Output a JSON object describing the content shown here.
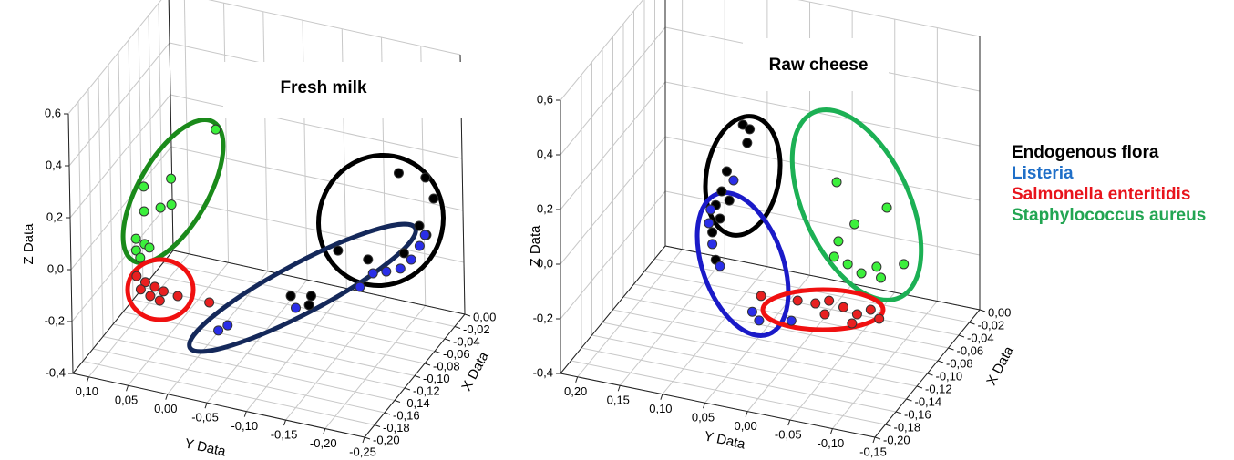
{
  "chart_data": [
    {
      "type": "scatter3d",
      "title": "Fresh milk",
      "x_label": "X Data",
      "y_label": "Y Data",
      "z_label": "Z Data",
      "xlim": [
        -0.2,
        0
      ],
      "ylim": [
        -0.25,
        0.12
      ],
      "zlim": [
        -0.4,
        0.6
      ],
      "xticks": [
        {
          "value": 0,
          "label": "0,00"
        },
        {
          "value": -0.02,
          "label": "-0,02"
        },
        {
          "value": -0.04,
          "label": "-0,04"
        },
        {
          "value": -0.06,
          "label": "-0,06"
        },
        {
          "value": -0.08,
          "label": "-0,08"
        },
        {
          "value": -0.1,
          "label": "-0,10"
        },
        {
          "value": -0.12,
          "label": "-0,12"
        },
        {
          "value": -0.14,
          "label": "-0,14"
        },
        {
          "value": -0.16,
          "label": "-0,16"
        },
        {
          "value": -0.18,
          "label": "-0,18"
        },
        {
          "value": -0.2,
          "label": "-0,20"
        }
      ],
      "yticks": [
        {
          "value": 0.1,
          "label": "0,10"
        },
        {
          "value": 0.05,
          "label": "0,05"
        },
        {
          "value": 0,
          "label": "0,00"
        },
        {
          "value": -0.05,
          "label": "-0,05"
        },
        {
          "value": -0.1,
          "label": "-0,10"
        },
        {
          "value": -0.15,
          "label": "-0,15"
        },
        {
          "value": -0.2,
          "label": "-0,20"
        },
        {
          "value": -0.25,
          "label": "-0,25"
        }
      ],
      "zticks": [
        {
          "value": 0.6,
          "label": "0,6"
        },
        {
          "value": 0.4,
          "label": "0,4"
        },
        {
          "value": 0.2,
          "label": "0,2"
        },
        {
          "value": 0,
          "label": "0,0"
        },
        {
          "value": -0.2,
          "label": "-0,2"
        },
        {
          "value": -0.4,
          "label": "-0,4"
        }
      ],
      "grid": true,
      "series": [
        {
          "name": "Endogenous flora",
          "label_color": "#000000",
          "color": "#000000",
          "x": [
            -0.02,
            -0.02,
            -0.02,
            -0.02,
            -0.02,
            -0.02,
            -0.02,
            -0.02,
            -0.08,
            -0.08,
            -0.08
          ],
          "y": [
            -0.182,
            -0.216,
            -0.226,
            -0.207,
            -0.216,
            -0.103,
            -0.141,
            -0.187,
            -0.081,
            -0.107,
            -0.104
          ],
          "z": [
            0.146,
            0.151,
            0.077,
            -0.041,
            -0.07,
            -0.205,
            -0.214,
            -0.159,
            -0.252,
            -0.235,
            -0.272
          ]
        },
        {
          "name": "Listeria",
          "label_color": "#1f6fc8",
          "color": "#2a2ee8",
          "x": [
            -0.02,
            -0.02,
            -0.02,
            -0.02,
            -0.02,
            -0.02,
            -0.02,
            -0.12,
            -0.12,
            -0.08
          ],
          "y": [
            -0.147,
            -0.164,
            -0.182,
            -0.196,
            -0.207,
            -0.214,
            -0.13,
            -0.026,
            -0.014,
            -0.087
          ],
          "z": [
            -0.263,
            -0.245,
            -0.222,
            -0.178,
            -0.118,
            -0.071,
            -0.327,
            -0.307,
            -0.335,
            -0.294
          ]
        },
        {
          "name": "Salmonella enteritidis",
          "label_color": "#e8141c",
          "color": "#e82020",
          "x": [
            -0.08,
            -0.08,
            -0.08,
            -0.08,
            -0.08,
            -0.08,
            -0.08,
            -0.08,
            -0.08
          ],
          "y": [
            0.115,
            0.104,
            0.092,
            0.081,
            0.063,
            0.098,
            0.086,
            0.023,
            0.11
          ],
          "z": [
            -0.306,
            -0.322,
            -0.332,
            -0.342,
            -0.348,
            -0.371,
            -0.381,
            -0.346,
            -0.354
          ]
        },
        {
          "name": "Staphylococcus aureus",
          "label_color": "#22a552",
          "color": "#3cf03c",
          "x": [
            -0.08,
            -0.08,
            -0.08,
            -0.08,
            -0.08,
            -0.08,
            -0.08,
            -0.08,
            -0.08,
            -0.08,
            -0.08
          ],
          "y": [
            0.011,
            0.069,
            0.104,
            0.069,
            0.083,
            0.104,
            0.115,
            0.104,
            0.115,
            0.098,
            0.11
          ],
          "z": [
            0.328,
            0.1,
            0.046,
            0,
            -0.021,
            -0.049,
            -0.162,
            -0.175,
            -0.207,
            -0.185,
            -0.232
          ]
        }
      ]
    },
    {
      "type": "scatter3d",
      "title": "Raw cheese",
      "x_label": "X Data",
      "y_label": "Y Data",
      "z_label": "Z Data",
      "xlim": [
        -0.2,
        0
      ],
      "ylim": [
        -0.15,
        0.22
      ],
      "zlim": [
        -0.4,
        0.6
      ],
      "xticks": [
        {
          "value": 0,
          "label": "0,00"
        },
        {
          "value": -0.02,
          "label": "-0,02"
        },
        {
          "value": -0.04,
          "label": "-0,04"
        },
        {
          "value": -0.06,
          "label": "-0,06"
        },
        {
          "value": -0.08,
          "label": "-0,08"
        },
        {
          "value": -0.1,
          "label": "-0,10"
        },
        {
          "value": -0.12,
          "label": "-0,12"
        },
        {
          "value": -0.14,
          "label": "-0,14"
        },
        {
          "value": -0.16,
          "label": "-0,16"
        },
        {
          "value": -0.18,
          "label": "-0,18"
        },
        {
          "value": -0.2,
          "label": "-0,20"
        }
      ],
      "yticks": [
        {
          "value": 0.2,
          "label": "0,20"
        },
        {
          "value": 0.15,
          "label": "0,15"
        },
        {
          "value": 0.1,
          "label": "0,10"
        },
        {
          "value": 0.05,
          "label": "0,05"
        },
        {
          "value": 0,
          "label": "0,00"
        },
        {
          "value": -0.05,
          "label": "-0,05"
        },
        {
          "value": -0.1,
          "label": "-0,10"
        },
        {
          "value": -0.15,
          "label": "-0,15"
        }
      ],
      "zticks": [
        {
          "value": 0.6,
          "label": "0,6"
        },
        {
          "value": 0.4,
          "label": "0,4"
        },
        {
          "value": 0.2,
          "label": "0,2"
        },
        {
          "value": 0,
          "label": "0,0"
        },
        {
          "value": -0.2,
          "label": "-0,2"
        },
        {
          "value": -0.4,
          "label": "-0,4"
        }
      ],
      "grid": true,
      "series": [
        {
          "color": "#000000",
          "x": [
            -0.1,
            -0.1,
            -0.1,
            -0.1,
            -0.1,
            -0.1,
            -0.1,
            -0.1,
            -0.1,
            -0.1
          ],
          "y": [
            0.067,
            0.059,
            0.062,
            0.086,
            0.092,
            0.083,
            0.099,
            0.094,
            0.103,
            0.099
          ],
          "z": [
            0.373,
            0.362,
            0.31,
            0.191,
            0.114,
            0.086,
            0.059,
            0.013,
            -0.043,
            -0.141
          ]
        },
        {
          "color": "#2a2ee8",
          "x": [
            -0.1,
            -0.1,
            -0.1,
            -0.1,
            -0.1,
            -0.1,
            -0.1,
            -0.1
          ],
          "y": [
            0.078,
            0.105,
            0.107,
            0.103,
            0.094,
            0.056,
            0.048,
            0.01
          ],
          "z": [
            0.163,
            0.039,
            -0.012,
            -0.086,
            -0.161,
            -0.304,
            -0.331,
            -0.308
          ]
        },
        {
          "color": "#e82020",
          "x": [
            -0.08,
            -0.08,
            -0.08,
            -0.08,
            -0.08,
            -0.08,
            -0.08,
            -0.08,
            -0.08,
            -0.08
          ],
          "y": [
            0.058,
            0.015,
            -0.006,
            -0.022,
            -0.039,
            -0.055,
            -0.071,
            -0.081,
            -0.049,
            -0.017
          ],
          "z": [
            -0.294,
            -0.284,
            -0.281,
            -0.261,
            -0.274,
            -0.29,
            -0.263,
            -0.29,
            -0.327,
            -0.314
          ]
        },
        {
          "color": "#3cf03c",
          "x": [
            -0.02,
            -0.02,
            -0.02,
            -0.02,
            -0.02,
            -0.02,
            -0.02,
            -0.02,
            -0.02,
            -0.02
          ],
          "y": [
            0.006,
            -0.053,
            -0.015,
            0.004,
            -0.007,
            -0.023,
            -0.041,
            -0.073,
            -0.046,
            0.009
          ],
          "z": [
            0.015,
            -0.041,
            -0.125,
            -0.2,
            -0.277,
            -0.3,
            -0.265,
            -0.235,
            -0.302,
            -0.26
          ]
        }
      ]
    }
  ]
}
